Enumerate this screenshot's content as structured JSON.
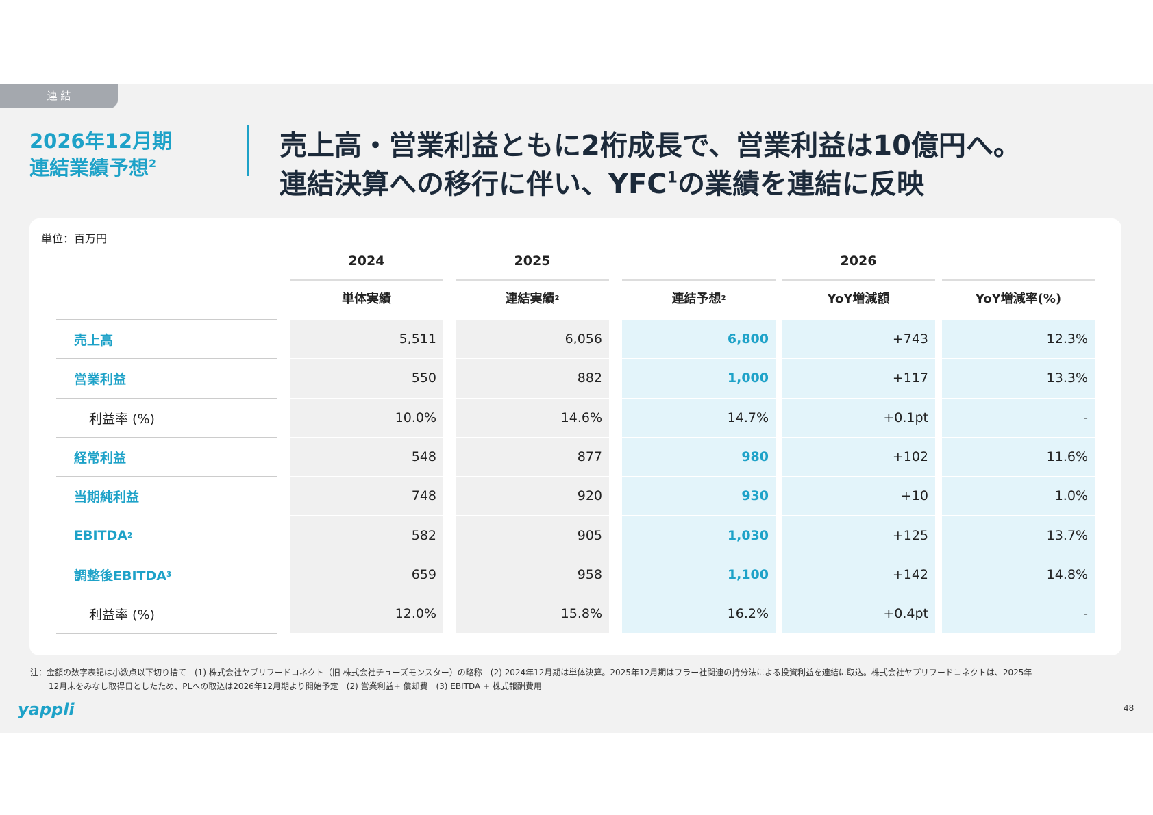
{
  "tab": "連 結",
  "heading": {
    "period": "2026年12月期",
    "subject": "連結業績予想",
    "subject_sup": "2"
  },
  "headline": {
    "line1": "売上高・営業利益ともに2桁成長で、営業利益は10億円へ。",
    "line2_a": "連結決算への移行に伴い、YFC",
    "line2_sup": "1",
    "line2_b": "の業績を連結に反映"
  },
  "table": {
    "unit": "単位：百万円",
    "years": [
      "2024",
      "2025",
      "2026"
    ],
    "columns": [
      {
        "label": "単体実績"
      },
      {
        "label": "連結実績",
        "sup": "2"
      },
      {
        "label": "連結予想",
        "sup": "2"
      },
      {
        "label": "YoY増減額"
      },
      {
        "label": "YoY増減率(%)"
      }
    ],
    "rows": [
      {
        "label": "売上高",
        "values": [
          "5,511",
          "6,056",
          "6,800",
          "+743",
          "12.3%"
        ]
      },
      {
        "label": "営業利益",
        "values": [
          "550",
          "882",
          "1,000",
          "+117",
          "13.3%"
        ]
      },
      {
        "label": "利益率 (%)",
        "values": [
          "10.0%",
          "14.6%",
          "14.7%",
          "+0.1pt",
          "-"
        ]
      },
      {
        "label": "経常利益",
        "values": [
          "548",
          "877",
          "980",
          "+102",
          "11.6%"
        ]
      },
      {
        "label": "当期純利益",
        "values": [
          "748",
          "920",
          "930",
          "+10",
          "1.0%"
        ]
      },
      {
        "label": "EBITDA",
        "sup": "2",
        "values": [
          "582",
          "905",
          "1,030",
          "+125",
          "13.7%"
        ]
      },
      {
        "label": "調整後EBITDA",
        "sup": "3",
        "values": [
          "659",
          "958",
          "1,100",
          "+142",
          "14.8%"
        ]
      },
      {
        "label": "利益率 (%)",
        "values": [
          "12.0%",
          "15.8%",
          "16.2%",
          "+0.4pt",
          "-"
        ]
      }
    ]
  },
  "footnotes": [
    "注：金額の数字表記は小数点以下切り捨て　(1) 株式会社ヤプリフードコネクト（旧 株式会社チューズモンスター）の略称　(2) 2024年12月期は単体決算。2025年12月期はフラー社関連の持分法による投資利益を連結に取込。株式会社ヤプリフードコネクトは、2025年",
    "12月末をみなし取得日としたため、PLへの取込は2026年12月期より開始予定　(2) 営業利益+ 償却費　(3) EBITDA + 株式報酬費用"
  ],
  "logo": "yappli",
  "page_number": "48"
}
